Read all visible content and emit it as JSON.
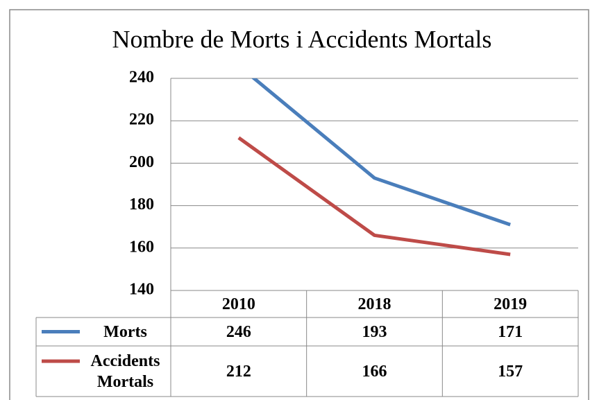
{
  "chart_data": {
    "type": "line",
    "title": "Nombre de Morts i Accidents Mortals",
    "categories": [
      "2010",
      "2018",
      "2019"
    ],
    "series": [
      {
        "name": "Morts",
        "color": "#4a7ebb",
        "values": [
          246,
          193,
          171
        ]
      },
      {
        "name": "Accidents Mortals",
        "color": "#be4b48",
        "values": [
          212,
          166,
          157
        ]
      }
    ],
    "ylim": [
      140,
      240
    ],
    "yticks": [
      140,
      160,
      180,
      200,
      220,
      240
    ],
    "grid": true
  }
}
